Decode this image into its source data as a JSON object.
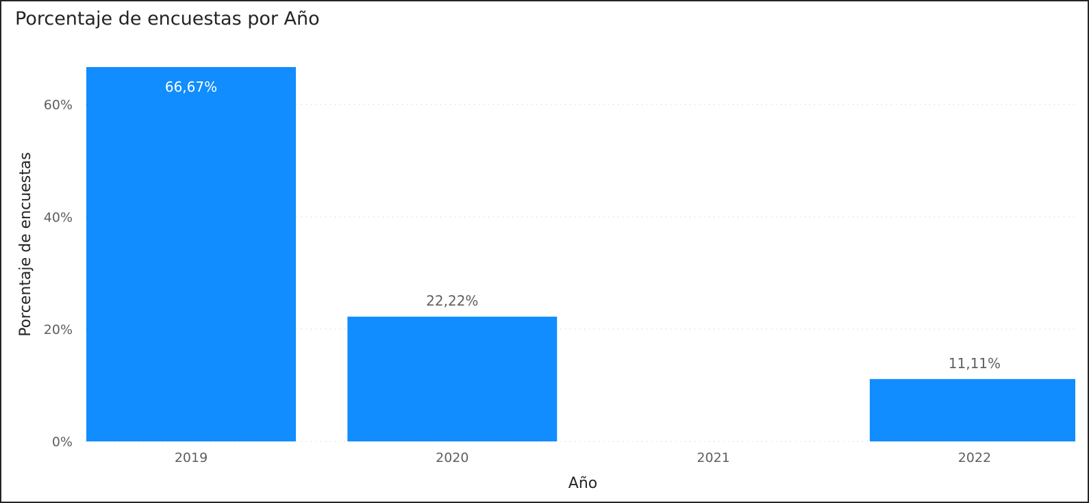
{
  "chart_data": {
    "type": "bar",
    "title": "Porcentaje de encuestas por Año",
    "xlabel": "Año",
    "ylabel": "Porcentaje de encuestas",
    "categories": [
      "2019",
      "2020",
      "2021",
      "2022"
    ],
    "values": [
      66.67,
      22.22,
      0,
      11.11
    ],
    "data_labels": [
      "66,67%",
      "22,22%",
      "",
      "11,11%"
    ],
    "y_ticks": [
      0,
      20,
      40,
      60
    ],
    "y_tick_labels": [
      "0%",
      "20%",
      "40%",
      "60%"
    ],
    "ylim": [
      0,
      66.67
    ],
    "grid": true,
    "bar_color": "#118DFF",
    "inside_label_color": "#ffffff",
    "outside_label_color": "#605e5c"
  }
}
